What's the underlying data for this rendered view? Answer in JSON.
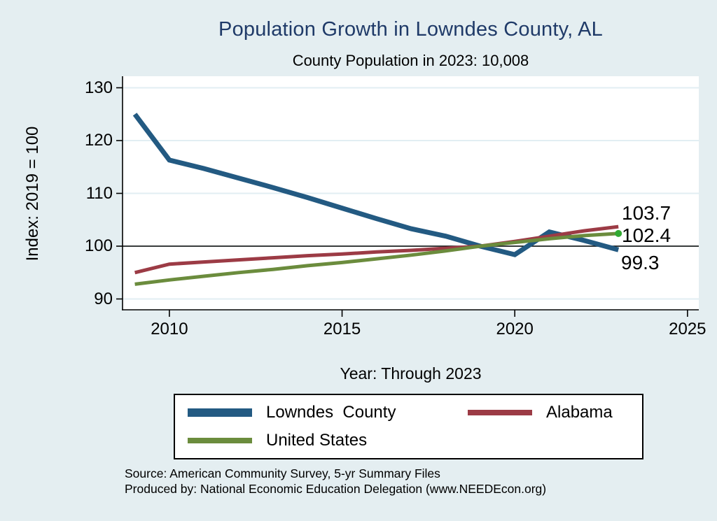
{
  "title": "Population Growth in Lowndes County, AL",
  "subtitle": "County Population in 2023: 10,008",
  "source_line1": "Source: American Community Survey, 5-yr Summary Files",
  "source_line2": "Produced by: National Economic Education Delegation (www.NEEDEcon.org)",
  "colors": {
    "background": "#e4eef1",
    "plot_bg": "#ffffff",
    "grid": "#e2eef3",
    "axis": "#000000",
    "title_text": "#1f3a68",
    "lowndes": "#235a82",
    "alabama": "#9c3b45",
    "us": "#6b8c3d",
    "us_marker": "#31a931"
  },
  "chart_data": {
    "type": "line",
    "title": "Population Growth in Lowndes County, AL",
    "subtitle": "County Population in 2023: 10,008",
    "xlabel": "Year: Through 2023",
    "ylabel": "Index: 2019 = 100",
    "x": [
      2009,
      2010,
      2011,
      2012,
      2013,
      2014,
      2015,
      2016,
      2017,
      2018,
      2019,
      2020,
      2021,
      2022,
      2023
    ],
    "series": [
      {
        "name": "Lowndes  County",
        "color_key": "lowndes",
        "width": 7,
        "end_label": "99.3",
        "values": [
          125.0,
          116.3,
          114.7,
          112.9,
          111.1,
          109.2,
          107.2,
          105.2,
          103.3,
          101.9,
          100.0,
          98.4,
          102.7,
          101.1,
          99.3
        ]
      },
      {
        "name": "Alabama",
        "color_key": "alabama",
        "width": 5,
        "end_label": "103.7",
        "values": [
          95.0,
          96.6,
          97.0,
          97.4,
          97.8,
          98.2,
          98.5,
          98.9,
          99.2,
          99.6,
          100.0,
          100.9,
          101.9,
          102.9,
          103.7
        ]
      },
      {
        "name": "United States",
        "color_key": "us",
        "width": 5,
        "end_label": "102.4",
        "end_marker": true,
        "values": [
          92.8,
          93.6,
          94.3,
          95.0,
          95.6,
          96.3,
          96.9,
          97.6,
          98.3,
          99.1,
          100.0,
          100.7,
          101.4,
          102.0,
          102.4
        ]
      }
    ],
    "xticks": [
      2010,
      2015,
      2020,
      2025
    ],
    "yticks": [
      90,
      100,
      110,
      120,
      130
    ],
    "ref_line": 100,
    "xlim": [
      2008.6,
      2025.3
    ],
    "ylim": [
      88,
      132
    ],
    "grid": "horizontal-only",
    "legend_position": "bottom"
  }
}
